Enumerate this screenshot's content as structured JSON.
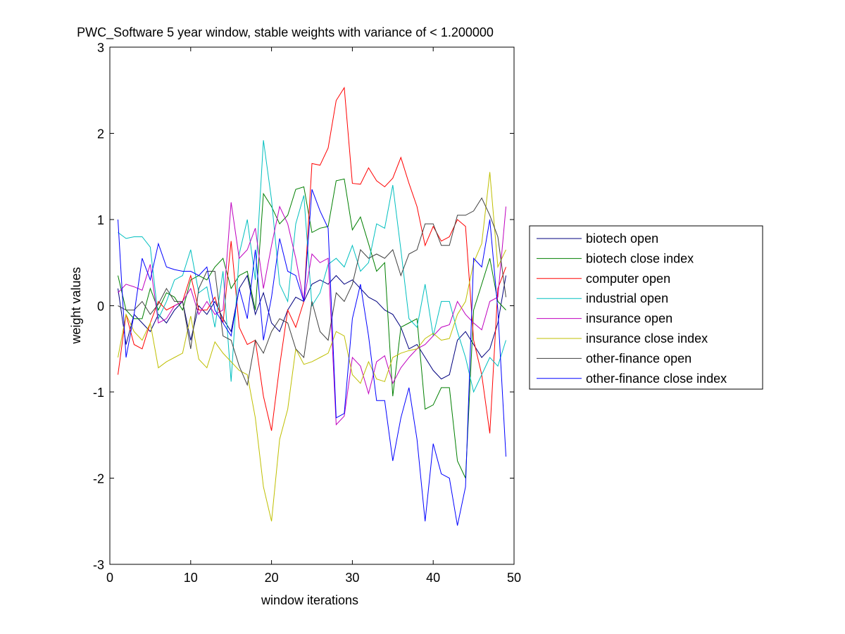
{
  "chart_data": {
    "type": "line",
    "title": "PWC_Software 5 year window, stable weights with variance of < 1.200000",
    "xlabel": "window iterations",
    "ylabel": "weight values",
    "xlim": [
      0,
      50
    ],
    "ylim": [
      -3,
      3
    ],
    "xticks": [
      0,
      10,
      20,
      30,
      40,
      50
    ],
    "yticks": [
      -3,
      -2,
      -1,
      0,
      1,
      2,
      3
    ],
    "grid": false,
    "legend_position": "outside-right",
    "x": [
      1,
      2,
      3,
      4,
      5,
      6,
      7,
      8,
      9,
      10,
      11,
      12,
      13,
      14,
      15,
      16,
      17,
      18,
      19,
      20,
      21,
      22,
      23,
      24,
      25,
      26,
      27,
      28,
      29,
      30,
      31,
      32,
      33,
      34,
      35,
      36,
      37,
      38,
      39,
      40,
      41,
      42,
      43,
      44,
      45,
      46,
      47,
      48,
      49
    ],
    "series": [
      {
        "name": "biotech open",
        "color": "#00007f",
        "values": [
          0.2,
          -0.45,
          -0.1,
          -0.2,
          -0.3,
          -0.1,
          -0.2,
          -0.05,
          0.05,
          -0.4,
          0,
          -0.1,
          0.05,
          -0.15,
          -0.3,
          0.2,
          0.35,
          -0.1,
          0.15,
          -0.2,
          -0.3,
          -0.05,
          0.1,
          0.05,
          0.25,
          0.3,
          0.25,
          0.35,
          0.25,
          0.3,
          0.2,
          0.1,
          0.05,
          -0.05,
          -0.1,
          -0.25,
          -0.5,
          -0.45,
          -0.6,
          -0.75,
          -0.85,
          -0.8,
          -0.4,
          -0.3,
          -0.45,
          -0.6,
          -0.5,
          -0.2,
          0.35
        ]
      },
      {
        "name": "biotech close index",
        "color": "#007f00",
        "values": [
          0.35,
          -0.05,
          -0.15,
          -0.15,
          0.2,
          -0.05,
          0.15,
          0.1,
          -0.05,
          0.3,
          0.35,
          0.3,
          0.45,
          0.55,
          0.2,
          0.35,
          0.4,
          -0.05,
          1.3,
          1.15,
          0.95,
          1.05,
          1.35,
          1.38,
          0.85,
          0.9,
          0.92,
          1.45,
          1.47,
          0.88,
          1.03,
          0.72,
          0.4,
          0.5,
          -1.05,
          -0.25,
          -0.2,
          -0.15,
          -1.2,
          -1.15,
          -0.95,
          -0.95,
          -1.8,
          -2.0,
          -0.05,
          0.25,
          0.55,
          0.05,
          -0.05
        ]
      },
      {
        "name": "computer open",
        "color": "#ff0000",
        "values": [
          -0.8,
          -0.1,
          -0.45,
          -0.5,
          -0.2,
          0.05,
          -0.05,
          0,
          0.05,
          0.35,
          -0.05,
          -0.05,
          0.1,
          -0.2,
          0.75,
          -0.25,
          -0.45,
          -0.4,
          -1.05,
          -1.45,
          -0.7,
          -0.05,
          -0.25,
          0.05,
          1.65,
          1.63,
          1.83,
          2.38,
          2.53,
          1.42,
          1.41,
          1.6,
          1.45,
          1.38,
          1.48,
          1.72,
          1.42,
          1.15,
          0.7,
          0.92,
          0.75,
          0.8,
          1.0,
          0.92,
          -0.4,
          -0.8,
          -1.48,
          0.2,
          0.45
        ]
      },
      {
        "name": "industrial open",
        "color": "#00bfbf",
        "values": [
          0.85,
          0.78,
          0.8,
          0.8,
          0.68,
          -0.15,
          0.05,
          0.3,
          0.35,
          0.65,
          0.15,
          0.22,
          -0.25,
          0.4,
          -0.88,
          0.6,
          1.0,
          0.3,
          1.92,
          1.23,
          0.25,
          0.05,
          0.95,
          1.28,
          0,
          0.15,
          0.48,
          0.55,
          0.45,
          0.7,
          0.4,
          0.5,
          0.95,
          0.9,
          1.4,
          0.65,
          -0.15,
          -0.25,
          0.25,
          -0.35,
          0.05,
          0.05,
          -0.3,
          -0.6,
          -1.0,
          -0.8,
          -0.6,
          -0.7,
          -0.4
        ]
      },
      {
        "name": "insurance open",
        "color": "#bf00bf",
        "values": [
          0.15,
          0.25,
          0.22,
          0.18,
          0.48,
          -0.2,
          -0.15,
          0,
          0.05,
          0.2,
          -0.1,
          0.05,
          -0.1,
          -0.05,
          1.2,
          0.55,
          0.65,
          0.9,
          0.2,
          0.7,
          1.15,
          0.95,
          0.55,
          0.05,
          0.6,
          0.5,
          0.55,
          -1.38,
          -1.28,
          -0.6,
          -0.7,
          -1.02,
          -0.65,
          -0.58,
          -0.9,
          -0.72,
          -0.6,
          -0.5,
          -0.45,
          -0.35,
          -0.25,
          -0.22,
          0.05,
          -0.1,
          -0.2,
          -0.28,
          0.05,
          0.1,
          1.15
        ]
      },
      {
        "name": "insurance close index",
        "color": "#bfbf00",
        "values": [
          -0.6,
          -0.1,
          -0.3,
          -0.4,
          -0.2,
          -0.72,
          -0.65,
          -0.6,
          -0.55,
          -0.12,
          -0.62,
          -0.72,
          -0.42,
          -0.55,
          -0.65,
          -0.75,
          -0.8,
          -1.3,
          -2.1,
          -2.5,
          -1.55,
          -1.2,
          -0.5,
          -0.68,
          -0.65,
          -0.6,
          -0.55,
          -0.3,
          -0.35,
          -0.8,
          -0.9,
          -0.65,
          -0.85,
          -0.88,
          -0.6,
          -0.55,
          -0.52,
          -0.5,
          -0.38,
          -0.32,
          -0.4,
          -0.38,
          -0.1,
          0.05,
          0.5,
          0.72,
          1.55,
          0.45,
          0.65
        ]
      },
      {
        "name": "other-finance open",
        "color": "#3f3f3f",
        "values": [
          0,
          -0.05,
          -0.05,
          0.05,
          -0.1,
          0.02,
          0.2,
          0.05,
          0.05,
          -0.5,
          0.2,
          0.4,
          0.4,
          -0.35,
          -0.4,
          -0.7,
          -0.92,
          -0.4,
          -0.55,
          -0.3,
          -0.15,
          -0.2,
          -0.5,
          -0.6,
          0.05,
          -0.3,
          -0.4,
          0.15,
          0.05,
          0.25,
          0.65,
          0.55,
          0.6,
          0.55,
          0.65,
          0.35,
          0.6,
          0.65,
          0.95,
          0.95,
          0.7,
          0.7,
          1.05,
          1.05,
          1.1,
          1.25,
          1.05,
          0.8,
          0.1
        ]
      },
      {
        "name": "other-finance close index",
        "color": "#0000ff",
        "values": [
          1.0,
          -0.6,
          -0.1,
          0.55,
          0.3,
          0.72,
          0.45,
          0.42,
          0.4,
          0.4,
          0.35,
          0.45,
          -0.05,
          -0.2,
          -0.35,
          0.2,
          -0.15,
          0.65,
          -0.4,
          0.1,
          0.78,
          0.4,
          0.35,
          0.05,
          1.35,
          1.1,
          0.9,
          -1.3,
          -1.25,
          -0.15,
          0.25,
          -0.35,
          -1.1,
          -1.1,
          -1.8,
          -1.3,
          -0.95,
          -1.55,
          -2.5,
          -1.6,
          -1.95,
          -2.0,
          -2.55,
          -2.1,
          0.55,
          0.45,
          1.0,
          -0.05,
          -1.75
        ]
      }
    ]
  }
}
